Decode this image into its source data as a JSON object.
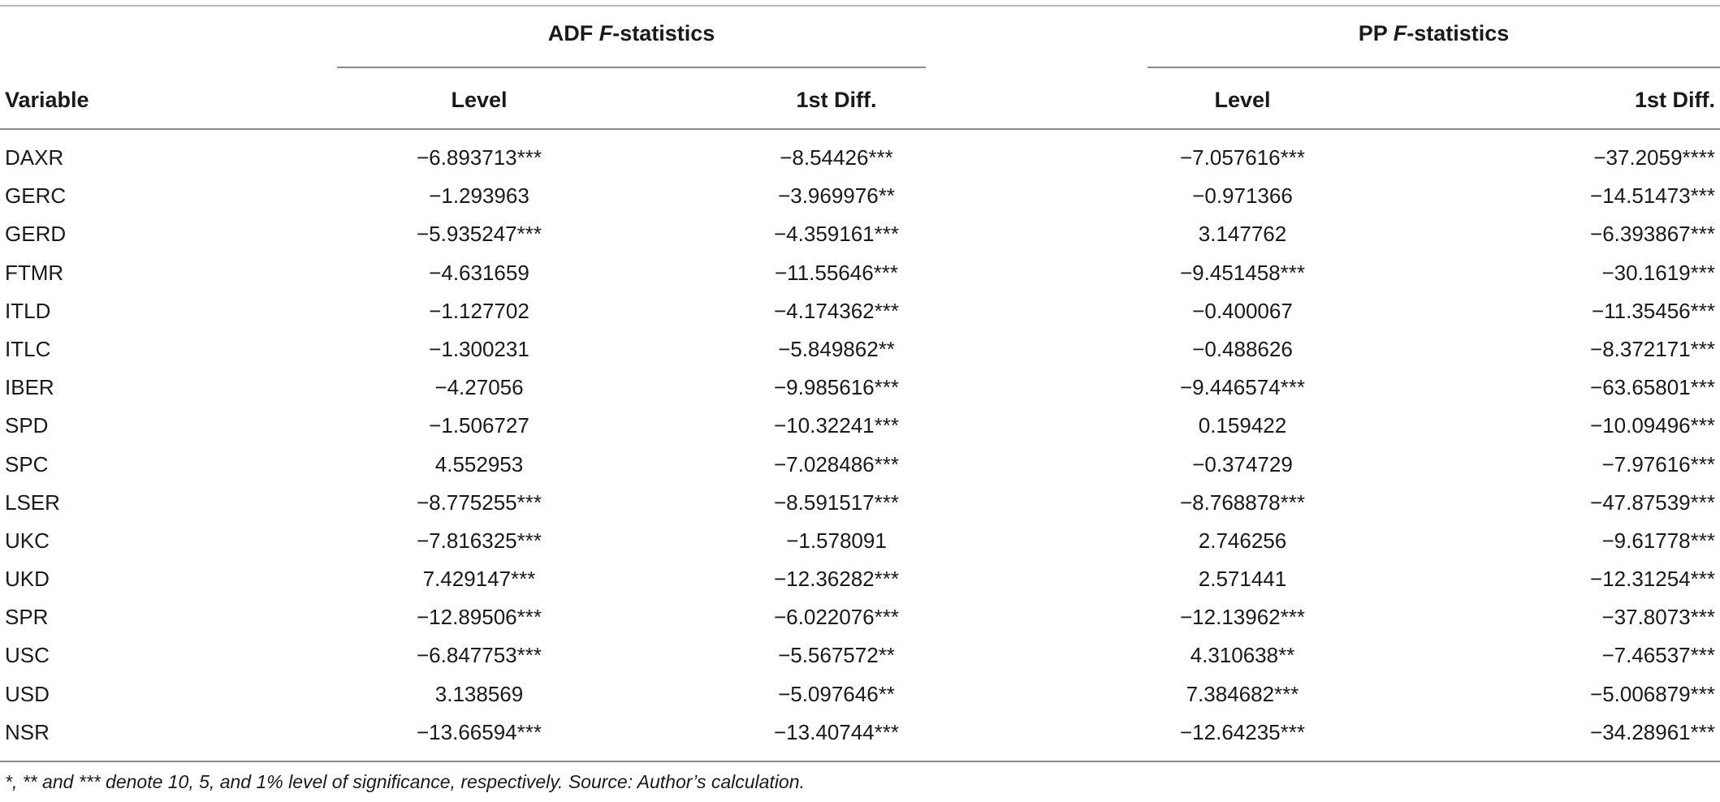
{
  "group_headers": {
    "adf_prefix": "ADF ",
    "adf_italic": "F",
    "adf_suffix": "-statistics",
    "pp_prefix": "PP ",
    "pp_italic": "F",
    "pp_suffix": "-statistics"
  },
  "columns": {
    "variable": "Variable",
    "adf_level": "Level",
    "adf_diff": "1st Diff.",
    "pp_level": "Level",
    "pp_diff": "1st Diff."
  },
  "rows": [
    {
      "variable": "DAXR",
      "adf_level": "−6.893713***",
      "adf_diff": "−8.54426***",
      "pp_level": "−7.057616***",
      "pp_diff": "−37.2059****"
    },
    {
      "variable": "GERC",
      "adf_level": "−1.293963",
      "adf_diff": "−3.969976**",
      "pp_level": "−0.971366",
      "pp_diff": "−14.51473***"
    },
    {
      "variable": "GERD",
      "adf_level": "−5.935247***",
      "adf_diff": "−4.359161***",
      "pp_level": "3.147762",
      "pp_diff": "−6.393867***"
    },
    {
      "variable": "FTMR",
      "adf_level": "−4.631659",
      "adf_diff": "−11.55646***",
      "pp_level": "−9.451458***",
      "pp_diff": "−30.1619***"
    },
    {
      "variable": "ITLD",
      "adf_level": "−1.127702",
      "adf_diff": "−4.174362***",
      "pp_level": "−0.400067",
      "pp_diff": "−11.35456***"
    },
    {
      "variable": "ITLC",
      "adf_level": "−1.300231",
      "adf_diff": "−5.849862**",
      "pp_level": "−0.488626",
      "pp_diff": "−8.372171***"
    },
    {
      "variable": "IBER",
      "adf_level": "−4.27056",
      "adf_diff": "−9.985616***",
      "pp_level": "−9.446574***",
      "pp_diff": "−63.65801***"
    },
    {
      "variable": "SPD",
      "adf_level": "−1.506727",
      "adf_diff": "−10.32241***",
      "pp_level": "0.159422",
      "pp_diff": "−10.09496***"
    },
    {
      "variable": "SPC",
      "adf_level": "4.552953",
      "adf_diff": "−7.028486***",
      "pp_level": "−0.374729",
      "pp_diff": "−7.97616***"
    },
    {
      "variable": "LSER",
      "adf_level": "−8.775255***",
      "adf_diff": "−8.591517***",
      "pp_level": "−8.768878***",
      "pp_diff": "−47.87539***"
    },
    {
      "variable": "UKC",
      "adf_level": "−7.816325***",
      "adf_diff": "−1.578091",
      "pp_level": "2.746256",
      "pp_diff": "−9.61778***"
    },
    {
      "variable": "UKD",
      "adf_level": "7.429147***",
      "adf_diff": "−12.36282***",
      "pp_level": "2.571441",
      "pp_diff": "−12.31254***"
    },
    {
      "variable": "SPR",
      "adf_level": "−12.89506***",
      "adf_diff": "−6.022076***",
      "pp_level": "−12.13962***",
      "pp_diff": "−37.8073***"
    },
    {
      "variable": "USC",
      "adf_level": "−6.847753***",
      "adf_diff": "−5.567572**",
      "pp_level": "4.310638**",
      "pp_diff": "−7.46537***"
    },
    {
      "variable": "USD",
      "adf_level": "3.138569",
      "adf_diff": "−5.097646**",
      "pp_level": "7.384682***",
      "pp_diff": "−5.006879***"
    },
    {
      "variable": "NSR",
      "adf_level": "−13.66594***",
      "adf_diff": "−13.40744***",
      "pp_level": "−12.64235***",
      "pp_diff": "−34.28961***"
    }
  ],
  "footnote": "*, ** and *** denote 10, 5, and 1% level of significance, respectively. Source: Author’s calculation."
}
